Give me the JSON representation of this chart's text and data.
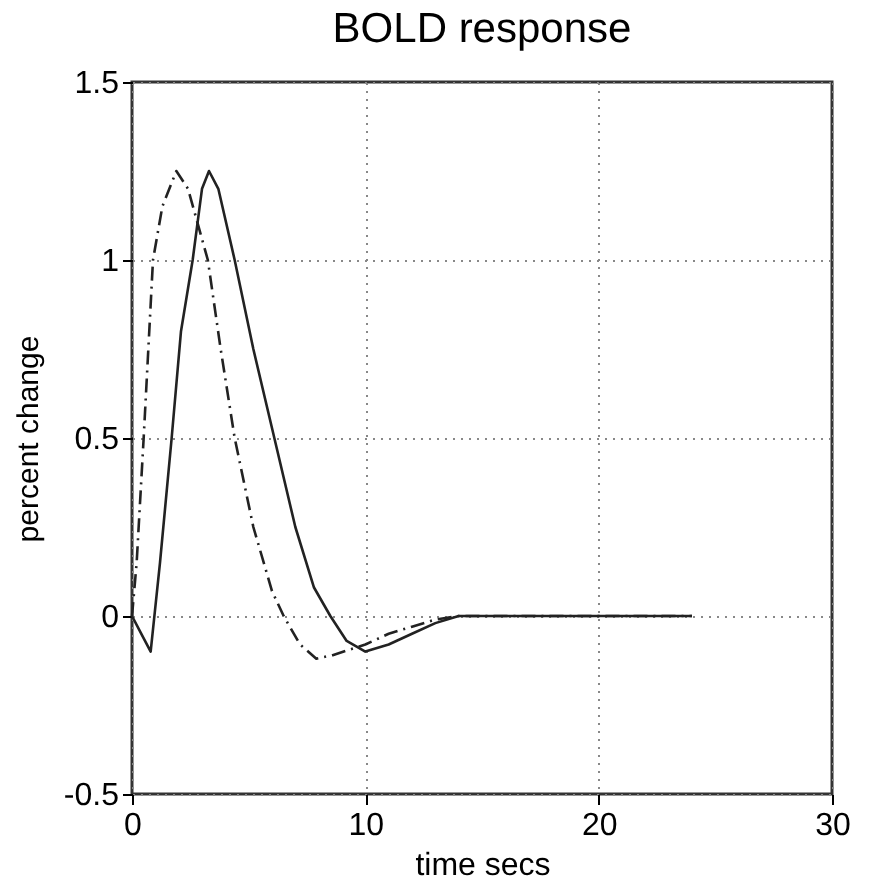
{
  "chart_data": {
    "type": "line",
    "title": "BOLD response",
    "xlabel": "time secs",
    "ylabel": "percent change",
    "xlim": [
      0,
      30
    ],
    "xticks": [
      0,
      10,
      20,
      30
    ],
    "ylim": [
      -0.5,
      1.5
    ],
    "yticks": [
      -0.5,
      0,
      0.5,
      1,
      1.5
    ],
    "grid": true,
    "series": [
      {
        "color": "#222222",
        "line_style": "solid",
        "x": [
          0,
          0.4,
          0.8,
          1.2,
          1.7,
          2.1,
          2.6,
          3.0,
          3.3,
          3.7,
          4.4,
          5.2,
          6.1,
          7.0,
          7.8,
          8.5,
          9.2,
          10.0,
          11.0,
          12.0,
          13.0,
          14.0,
          16.0,
          20.0,
          24.0
        ],
        "values": [
          0,
          -0.05,
          -0.1,
          0.15,
          0.5,
          0.8,
          1.0,
          1.2,
          1.25,
          1.2,
          1.0,
          0.75,
          0.5,
          0.25,
          0.08,
          0,
          -0.07,
          -0.1,
          -0.08,
          -0.05,
          -0.02,
          0,
          0,
          0,
          0
        ]
      },
      {
        "color": "#222222",
        "line_style": "dashed",
        "x": [
          0,
          0.2,
          0.5,
          0.9,
          1.3,
          1.9,
          2.4,
          3.25,
          3.8,
          4.4,
          5.2,
          6.0,
          6.5,
          7.2,
          7.9,
          8.6,
          10.0,
          11.0,
          12.0,
          13.0,
          14.0,
          16.0,
          20.0,
          24.0
        ],
        "values": [
          0,
          0.15,
          0.5,
          1.0,
          1.15,
          1.25,
          1.2,
          1.0,
          0.75,
          0.5,
          0.25,
          0.07,
          0,
          -0.08,
          -0.12,
          -0.11,
          -0.08,
          -0.05,
          -0.03,
          -0.01,
          0,
          0,
          0,
          0
        ]
      }
    ]
  }
}
